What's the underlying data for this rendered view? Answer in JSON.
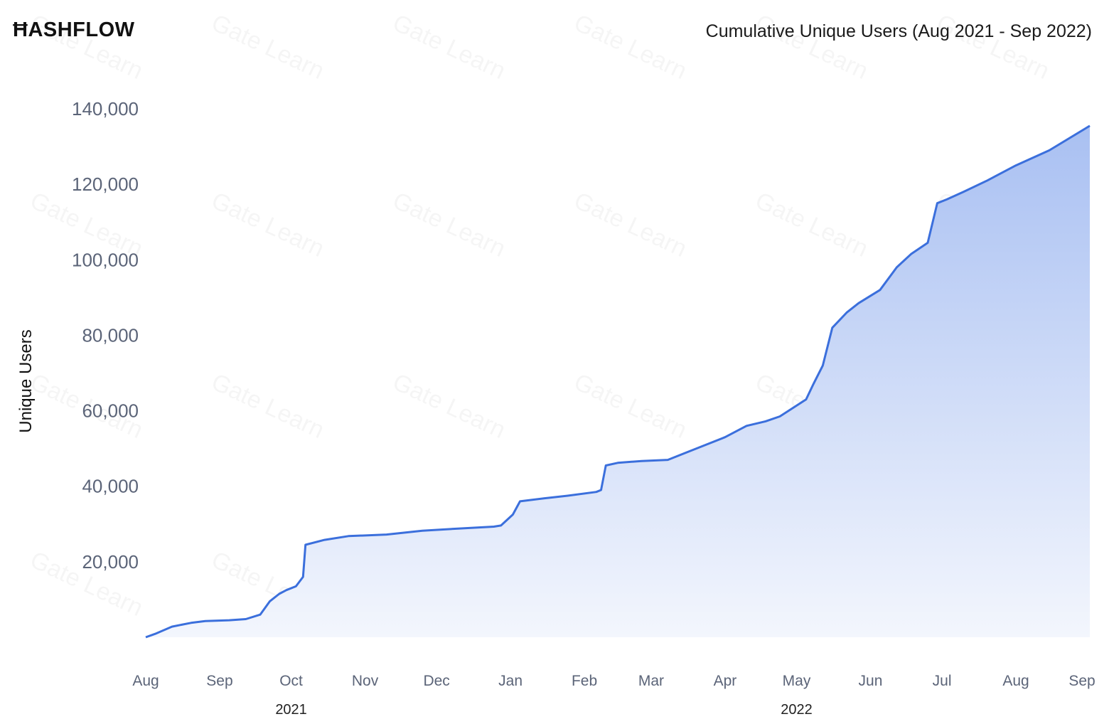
{
  "logo": {
    "text": "ĦASHFLOW"
  },
  "watermark": {
    "text": "Gate Learn"
  },
  "chart_data": {
    "type": "area",
    "title": "Cumulative Unique Users (Aug 2021 - Sep 2022)",
    "ylabel": "Unique Users",
    "xlabel": "",
    "ylim": [
      0,
      140000
    ],
    "yticks": [
      20000,
      40000,
      60000,
      80000,
      100000,
      120000,
      140000
    ],
    "ytick_labels": [
      "20,000",
      "40,000",
      "60,000",
      "80,000",
      "100,000",
      "120,000",
      "140,000"
    ],
    "xlim": [
      "2021-08-01",
      "2022-09-01"
    ],
    "xticks": [
      "2021-08-01",
      "2021-09-01",
      "2021-10-01",
      "2021-11-01",
      "2021-12-01",
      "2022-01-01",
      "2022-02-01",
      "2022-03-01",
      "2022-04-01",
      "2022-05-01",
      "2022-06-01",
      "2022-07-01",
      "2022-08-01",
      "2022-09-01"
    ],
    "xtick_labels": [
      "Aug",
      "Sep",
      "Oct",
      "Nov",
      "Dec",
      "Jan",
      "Feb",
      "Mar",
      "Apr",
      "May",
      "Jun",
      "Jul",
      "Aug",
      "Sep"
    ],
    "year_labels": [
      {
        "label": "2021",
        "at": "2021-10-01"
      },
      {
        "label": "2022",
        "at": "2022-05-01"
      }
    ],
    "grid": false,
    "colors": {
      "line": "#3b6fdc",
      "fill_top": "#a9c0f2",
      "fill_bottom": "#f3f6fd"
    },
    "series": [
      {
        "x": [
          "2021-08-01",
          "2021-08-05",
          "2021-08-12",
          "2021-08-20",
          "2021-08-26",
          "2021-09-05",
          "2021-09-12",
          "2021-09-18",
          "2021-09-22",
          "2021-09-26",
          "2021-09-29",
          "2021-10-03",
          "2021-10-06",
          "2021-10-07",
          "2021-10-15",
          "2021-10-25",
          "2021-11-10",
          "2021-11-25",
          "2021-12-10",
          "2021-12-25",
          "2021-12-28",
          "2022-01-02",
          "2022-01-05",
          "2022-01-15",
          "2022-01-25",
          "2022-02-06",
          "2022-02-08",
          "2022-02-10",
          "2022-02-15",
          "2022-02-25",
          "2022-03-08",
          "2022-03-20",
          "2022-04-01",
          "2022-04-10",
          "2022-04-18",
          "2022-04-24",
          "2022-05-05",
          "2022-05-08",
          "2022-05-12",
          "2022-05-16",
          "2022-05-22",
          "2022-05-27",
          "2022-06-05",
          "2022-06-12",
          "2022-06-18",
          "2022-06-25",
          "2022-06-29",
          "2022-07-03",
          "2022-07-10",
          "2022-07-20",
          "2022-08-01",
          "2022-08-15",
          "2022-09-01"
        ],
        "y": [
          0,
          900,
          2800,
          3800,
          4300,
          4500,
          4800,
          6000,
          9500,
          11500,
          12500,
          13500,
          16000,
          24500,
          25800,
          26800,
          27200,
          28200,
          28800,
          29300,
          29600,
          32500,
          36000,
          36800,
          37500,
          38500,
          39000,
          45500,
          46200,
          46700,
          47000,
          50000,
          53000,
          56000,
          57200,
          58500,
          63000,
          67000,
          72000,
          82000,
          86000,
          88500,
          92000,
          98000,
          101500,
          104500,
          115000,
          116000,
          118000,
          121000,
          125000,
          129000,
          135500
        ]
      }
    ]
  }
}
